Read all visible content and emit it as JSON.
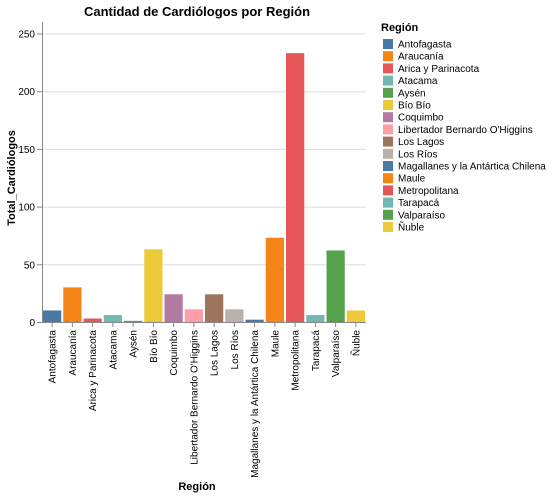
{
  "chart_data": {
    "type": "bar",
    "title": "Cantidad de Cardiólogos por Región",
    "xlabel": "Región",
    "ylabel": "Total_Cardiólogos",
    "ylim": [
      0,
      260
    ],
    "yticks": [
      0,
      50,
      100,
      150,
      200,
      250
    ],
    "grid": true,
    "legend_position": "right",
    "legend_title": "Región",
    "categories": [
      "Antofagasta",
      "Araucanía",
      "Arica y Parinacota",
      "Atacama",
      "Aysén",
      "Bío Bío",
      "Coquimbo",
      "Libertador Bernardo O'Higgins",
      "Los Lagos",
      "Los Ríos",
      "Magallanes y la Antártica Chilena",
      "Maule",
      "Metropolitana",
      "Tarapacá",
      "Valparaíso",
      "Ñuble"
    ],
    "values": [
      10,
      30,
      3,
      6,
      1,
      63,
      24,
      11,
      24,
      11,
      2,
      73,
      233,
      6,
      62,
      10
    ],
    "colors": [
      "#4c78a8",
      "#f58518",
      "#e45756",
      "#72b7b2",
      "#54a24b",
      "#eeca3b",
      "#b279a2",
      "#ff9da6",
      "#9d755d",
      "#bab0ac",
      "#4c78a8",
      "#f58518",
      "#e45756",
      "#72b7b2",
      "#54a24b",
      "#eeca3b"
    ]
  }
}
